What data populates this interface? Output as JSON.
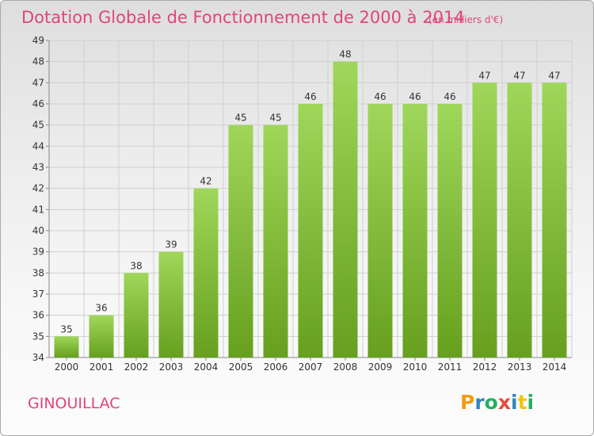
{
  "header": {
    "title": "Dotation Globale de Fonctionnement de 2000 à 2014",
    "unit": "(en milliers d'€)"
  },
  "commune": "GINOUILLAC",
  "logo": {
    "text": "Proxiti",
    "letters": [
      "P",
      "r",
      "o",
      "x",
      "i",
      "t",
      "i"
    ],
    "letter_colors": [
      "#f39c12",
      "#2e86c1",
      "#27ae60",
      "#e74c3c",
      "#2e86c1",
      "#f1c40f",
      "#27ae60"
    ]
  },
  "colors": {
    "bar_light": "#9fd75a",
    "bar_dark": "#66a01e",
    "accent": "#e0457b"
  },
  "chart_data": {
    "type": "bar",
    "title": "Dotation Globale de Fonctionnement de 2000 à 2014",
    "subtitle": "(en milliers d'€)",
    "categories": [
      "2000",
      "2001",
      "2002",
      "2003",
      "2004",
      "2005",
      "2006",
      "2007",
      "2008",
      "2009",
      "2010",
      "2011",
      "2012",
      "2013",
      "2014"
    ],
    "values": [
      35,
      36,
      38,
      39,
      42,
      45,
      45,
      46,
      48,
      46,
      46,
      46,
      47,
      47,
      47
    ],
    "ylim": [
      34,
      49
    ],
    "yticks": [
      34,
      35,
      36,
      37,
      38,
      39,
      40,
      41,
      42,
      43,
      44,
      45,
      46,
      47,
      48,
      49
    ],
    "grid": true,
    "legend": "none"
  }
}
